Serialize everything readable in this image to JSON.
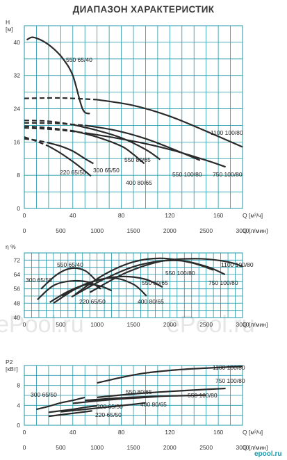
{
  "title": "ДИАПАЗОН ХАРАКТЕРИСТИК",
  "watermarks": [
    "ePool.ru",
    "ePool.ru"
  ],
  "brand": "epool.ru",
  "colors": {
    "grid": "#1f97a8",
    "curve": "#2a2a2a",
    "background": "#ffffff"
  },
  "chart_data": [
    {
      "type": "line",
      "title": "",
      "ylabel": "H",
      "yunit": "[м]",
      "xlabel": "Q [м³/ч]",
      "xlabel2": "Q [л/мин]",
      "xlim": [
        0,
        180
      ],
      "ylim": [
        0,
        44
      ],
      "yticks": [
        0,
        8,
        16,
        24,
        32,
        40
      ],
      "xticks": [
        0,
        40,
        80,
        120,
        160
      ],
      "xticks_label": [
        "0",
        "40",
        "80",
        "120",
        "160"
      ],
      "x2ticks": [
        "0",
        "500",
        "1000",
        "1500",
        "2000",
        "2500",
        "3000"
      ],
      "grid": true,
      "series": [
        {
          "name": "550 65/40",
          "dashed_until": null,
          "x": [
            2,
            6,
            10,
            16,
            24,
            32,
            40,
            48,
            54
          ],
          "y": [
            40.6,
            41.2,
            41,
            40.2,
            38.5,
            36,
            32,
            24,
            22.8
          ]
        },
        {
          "name": "300 65/50",
          "dashed_until": 20,
          "x": [
            0,
            10,
            20,
            30,
            40,
            50,
            57
          ],
          "y": [
            16.8,
            16.4,
            15.8,
            15,
            13.8,
            12,
            10.8
          ]
        },
        {
          "name": "220 65/50",
          "dashed_until": 20,
          "x": [
            0,
            10,
            20,
            30,
            40,
            48,
            55
          ],
          "y": [
            17.2,
            16.2,
            15,
            13.3,
            11.3,
            9.5,
            7.8
          ]
        },
        {
          "name": "550 80/65",
          "dashed_until": 40,
          "x": [
            0,
            20,
            40,
            60,
            80,
            100,
            112
          ],
          "y": [
            21.2,
            21,
            20.2,
            18.8,
            17,
            14.2,
            11.8
          ]
        },
        {
          "name": "400 80/65",
          "dashed_until": 40,
          "x": [
            0,
            20,
            40,
            60,
            80,
            90,
            99
          ],
          "y": [
            19.8,
            19.4,
            18.7,
            17.2,
            15,
            13,
            10.8
          ]
        },
        {
          "name": "550 100/80",
          "dashed_until": 50,
          "x": [
            0,
            25,
            50,
            75,
            100,
            125,
            145
          ],
          "y": [
            20.6,
            20.5,
            20,
            18.8,
            16.8,
            14,
            11.6
          ]
        },
        {
          "name": "750 100/80",
          "dashed_until": 50,
          "x": [
            0,
            25,
            50,
            75,
            100,
            125,
            150,
            166
          ],
          "y": [
            19.4,
            19,
            18.2,
            17,
            15.6,
            13.8,
            11.6,
            10
          ]
        },
        {
          "name": "1100 100/80",
          "dashed_until": 60,
          "x": [
            0,
            30,
            60,
            90,
            120,
            150,
            180
          ],
          "y": [
            26.5,
            26.6,
            26.2,
            24.8,
            22.2,
            18.6,
            14.8
          ]
        }
      ]
    },
    {
      "type": "line",
      "title": "",
      "ylabel": "η %",
      "xlabel": "Q [л/мин]",
      "xlim": [
        0,
        3000
      ],
      "ylim": [
        40,
        76
      ],
      "yticks": [
        40,
        48,
        56,
        64,
        72
      ],
      "xticks": [
        0,
        500,
        1000,
        1500,
        2000,
        2500,
        3000
      ],
      "grid": true,
      "series": [
        {
          "name": "550 65/40",
          "x": [
            230,
            450,
            650,
            840,
            1000
          ],
          "y": [
            56,
            64,
            67.5,
            66,
            60
          ]
        },
        {
          "name": "300 65/50",
          "x": [
            180,
            400,
            650,
            900,
            1050
          ],
          "y": [
            50,
            57.8,
            60.4,
            59.5,
            56
          ]
        },
        {
          "name": "220 65/50",
          "x": [
            350,
            600,
            850,
            1050,
            1200
          ],
          "y": [
            48.5,
            54.5,
            58.3,
            57.5,
            55
          ]
        },
        {
          "name": "550 80/65",
          "x": [
            520,
            900,
            1300,
            1650,
            1900
          ],
          "y": [
            52,
            59.5,
            62.8,
            61.5,
            57
          ]
        },
        {
          "name": "400 80/65",
          "x": [
            400,
            800,
            1200,
            1500,
            1680
          ],
          "y": [
            48,
            58,
            62,
            58.5,
            52
          ]
        },
        {
          "name": "550 100/80",
          "x": [
            700,
            1100,
            1500,
            1900,
            2300,
            2600
          ],
          "y": [
            53,
            64,
            71,
            73,
            70.5,
            66.5
          ]
        },
        {
          "name": "750 100/80",
          "x": [
            650,
            1100,
            1600,
            2100,
            2500,
            2760
          ],
          "y": [
            51.5,
            61.5,
            69.5,
            71.8,
            68.5,
            64
          ]
        },
        {
          "name": "1100 100/80",
          "x": [
            900,
            1400,
            1900,
            2400,
            2800,
            3000
          ],
          "y": [
            54,
            65,
            71.5,
            72.8,
            71,
            68.5
          ]
        }
      ]
    },
    {
      "type": "line",
      "title": "",
      "ylabel": "P2",
      "yunit": "[кВт]",
      "xlabel": "Q [м³/ч]",
      "xlabel2": "Q [л/мин]",
      "xlim": [
        0,
        180
      ],
      "ylim": [
        0,
        12
      ],
      "yticks": [
        0,
        4,
        8
      ],
      "xticks": [
        0,
        40,
        80,
        120,
        160
      ],
      "x2ticks": [
        "0",
        "500",
        "1000",
        "1500",
        "2000",
        "2500",
        "3000"
      ],
      "grid": true,
      "series": [
        {
          "name": "300 65/50",
          "x": [
            10,
            20,
            30,
            40,
            50
          ],
          "y": [
            3.2,
            3.8,
            4.5,
            5.0,
            5.6
          ]
        },
        {
          "name": "220 65/50",
          "x": [
            20,
            30,
            40,
            50,
            60
          ],
          "y": [
            2.6,
            2.9,
            3.2,
            3.6,
            3.9
          ]
        },
        {
          "name": "550 65/40",
          "x": [
            20,
            30,
            40,
            50,
            56
          ],
          "y": [
            1.8,
            2.1,
            2.4,
            2.7,
            2.9
          ]
        },
        {
          "name": "400 80/65",
          "x": [
            30,
            50,
            70,
            90,
            100
          ],
          "y": [
            2.7,
            3.2,
            3.7,
            4.2,
            4.5
          ]
        },
        {
          "name": "550 80/65",
          "x": [
            40,
            60,
            80,
            100,
            112
          ],
          "y": [
            4.4,
            4.9,
            5.3,
            5.6,
            5.8
          ]
        },
        {
          "name": "550 100/80",
          "x": [
            50,
            80,
            110,
            140,
            150
          ],
          "y": [
            5.0,
            5.5,
            5.8,
            6.0,
            6.05
          ]
        },
        {
          "name": "750 100/80",
          "x": [
            60,
            90,
            120,
            150,
            166
          ],
          "y": [
            5.6,
            6.3,
            6.8,
            7.2,
            7.4
          ]
        },
        {
          "name": "1100 100/80",
          "x": [
            60,
            80,
            100,
            130,
            160,
            180
          ],
          "y": [
            8.5,
            9.6,
            10.5,
            11.2,
            11.6,
            11.8
          ]
        }
      ]
    }
  ],
  "labels": {
    "top": [
      "550 65/40",
      "1100 100/80",
      "550 80/65",
      "300 65/50",
      "220 65/50",
      "550 100/80",
      "750 100/80",
      "400 80/65"
    ],
    "mid": [
      "550 65/40",
      "300 65/50",
      "550 100/80",
      "1100 100/80",
      "550 80/65",
      "750 100/80",
      "220 65/50",
      "400 80/65"
    ],
    "bot": [
      "300 65/50",
      "1100 100/80",
      "750 100/80",
      "550 80/65",
      "550 100/80",
      "300 65/50",
      "400 80/65",
      "220 65/50"
    ]
  }
}
